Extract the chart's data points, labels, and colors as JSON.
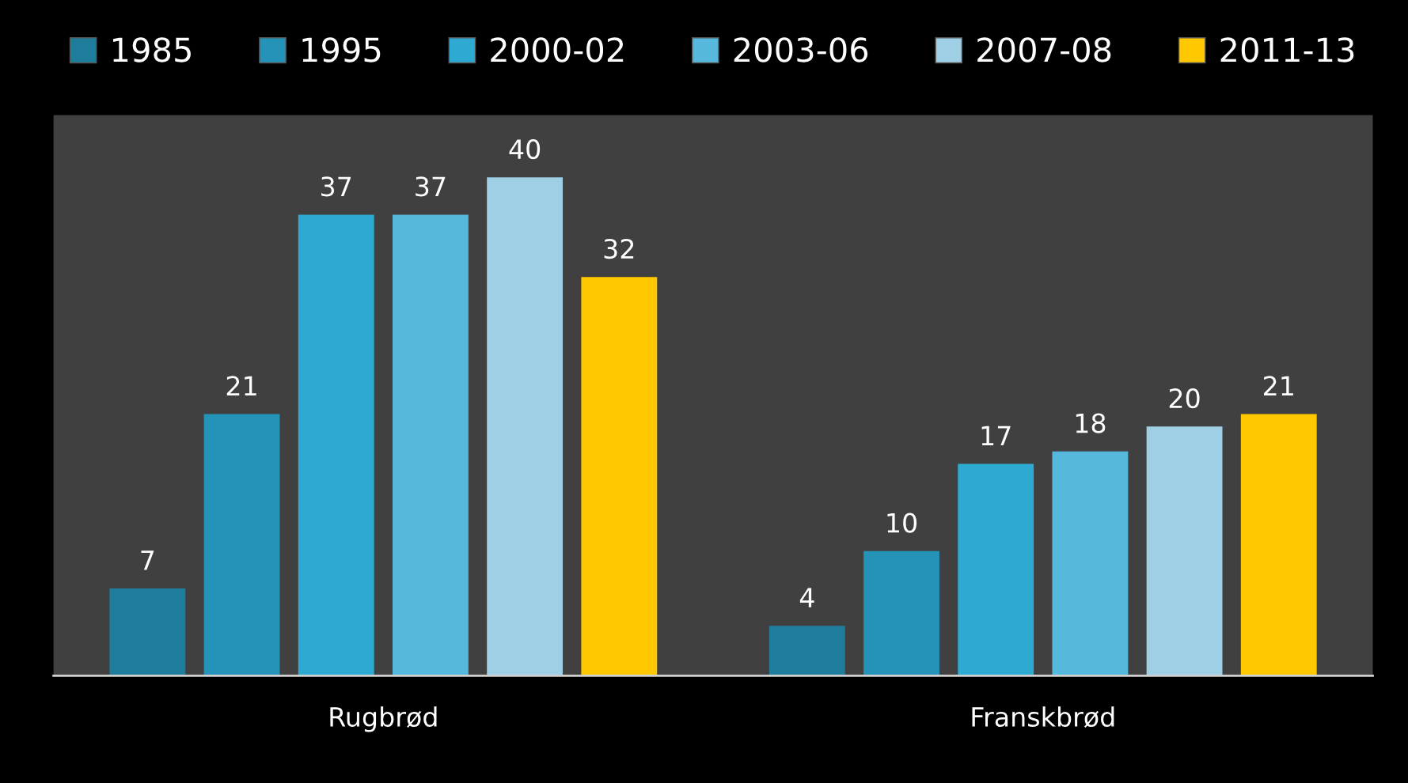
{
  "chart_data": {
    "type": "bar",
    "categories": [
      "Rugbrød",
      "Franskbrød"
    ],
    "series": [
      {
        "name": "1985",
        "color": "#1f7d9c",
        "values": [
          7,
          4
        ]
      },
      {
        "name": "1995",
        "color": "#2592b8",
        "values": [
          21,
          10
        ]
      },
      {
        "name": "2000-02",
        "color": "#2eaad2",
        "values": [
          37,
          17
        ]
      },
      {
        "name": "2003-06",
        "color": "#55b8dc",
        "values": [
          37,
          18
        ]
      },
      {
        "name": "2007-08",
        "color": "#9fcfe4",
        "values": [
          40,
          20
        ]
      },
      {
        "name": "2011-13",
        "color": "#ffc800",
        "values": [
          32,
          21
        ]
      }
    ],
    "ylim": [
      0,
      45
    ],
    "tick_labels": "x",
    "data_labels": true,
    "legend": "top",
    "grid": false
  }
}
